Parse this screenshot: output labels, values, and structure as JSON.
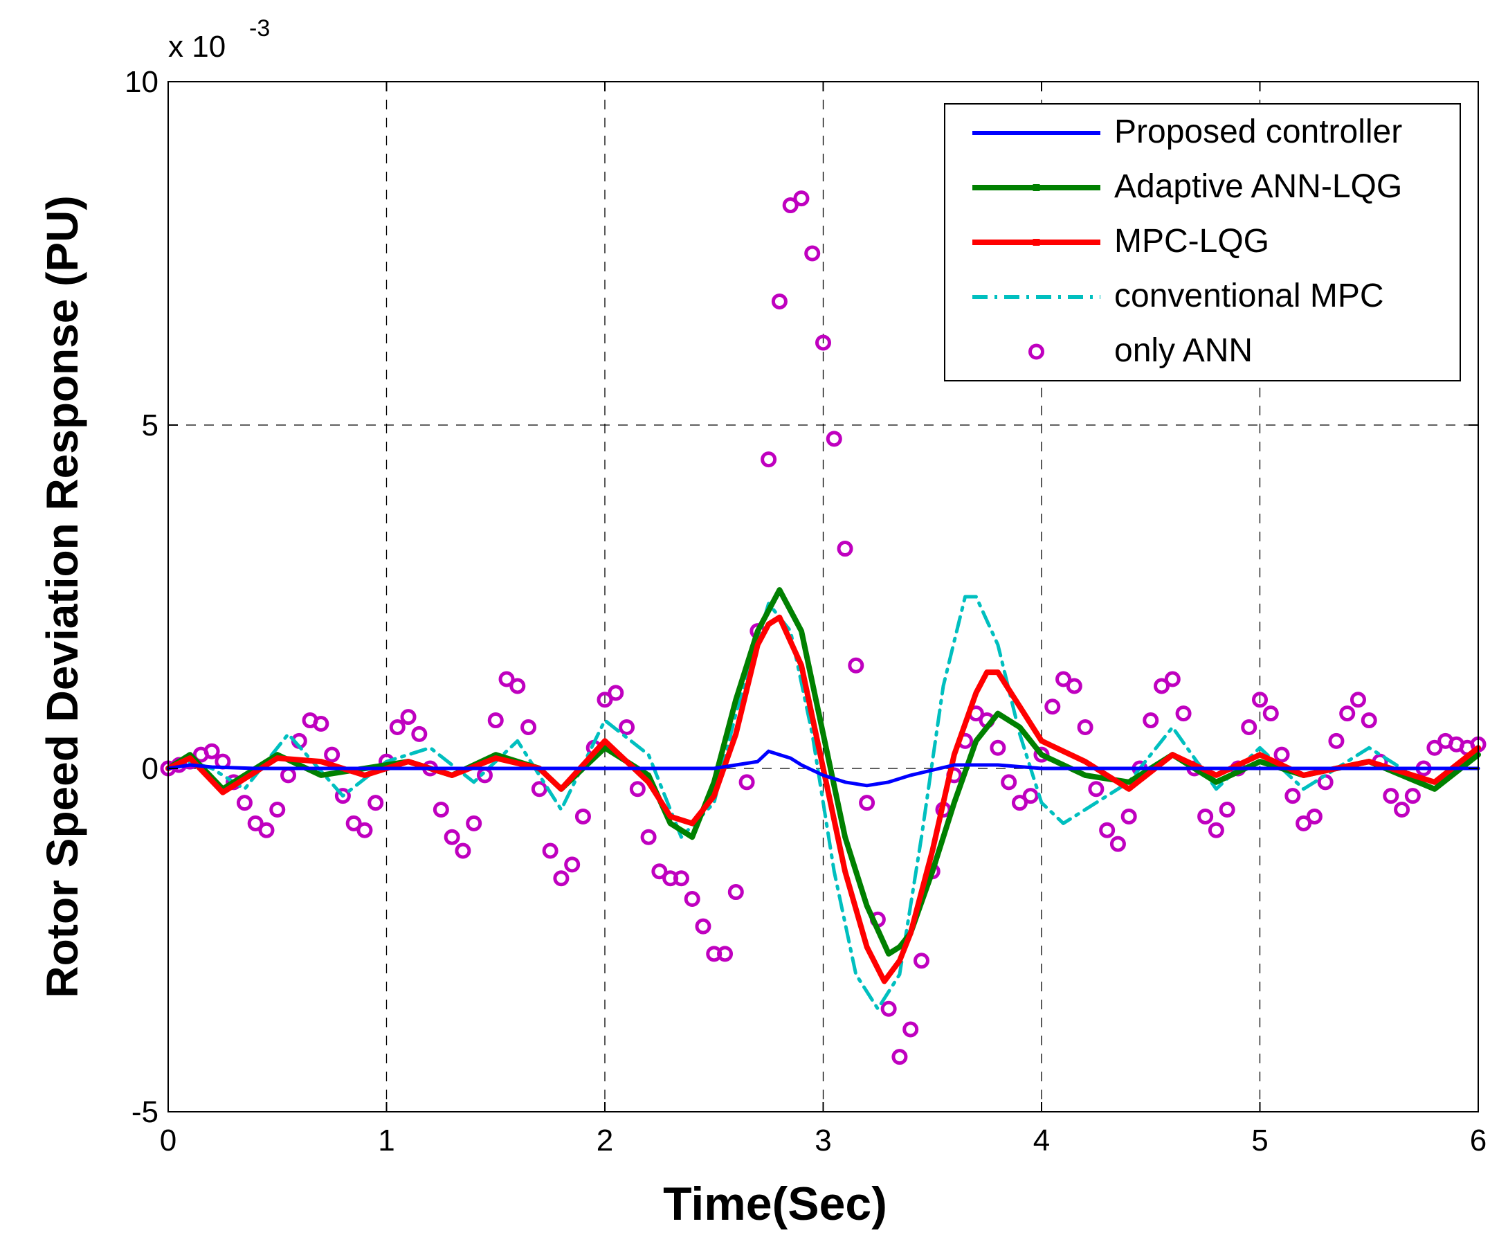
{
  "chart_data": {
    "type": "line",
    "title": "",
    "xlabel": "Time(Sec)",
    "ylabel": "Rotor Speed  Deviation Response  (PU)",
    "y_exponent_label": "x 10",
    "y_exponent_power": "-3",
    "xlim": [
      0,
      6
    ],
    "ylim": [
      -5,
      10
    ],
    "xticks": [
      0,
      1,
      2,
      3,
      4,
      5,
      6
    ],
    "xtick_labels": [
      "0",
      "1",
      "2",
      "3",
      "4",
      "5",
      "6"
    ],
    "yticks": [
      -5,
      0,
      5,
      10
    ],
    "ytick_labels": [
      "-5",
      "0",
      "5",
      "10"
    ],
    "grid": true,
    "legend_position": "top-right",
    "series": [
      {
        "name": "Proposed controller",
        "color": "#0000ff",
        "style": "solid",
        "x": [
          0,
          0.1,
          0.2,
          0.4,
          1.0,
          2.0,
          2.5,
          2.7,
          2.75,
          2.8,
          2.85,
          2.9,
          3.0,
          3.1,
          3.2,
          3.3,
          3.4,
          3.6,
          3.8,
          4.0,
          4.5,
          5.0,
          6.0
        ],
        "values": [
          0,
          0.05,
          0.02,
          0,
          0,
          0,
          0,
          0.1,
          0.25,
          0.2,
          0.15,
          0.05,
          -0.1,
          -0.2,
          -0.25,
          -0.2,
          -0.1,
          0.05,
          0.05,
          0,
          0,
          0,
          0
        ]
      },
      {
        "name": "Adaptive ANN-LQG",
        "color": "#008000",
        "style": "solid-markers",
        "x": [
          0,
          0.1,
          0.25,
          0.5,
          0.7,
          0.9,
          1.1,
          1.3,
          1.5,
          1.7,
          1.8,
          2.0,
          2.2,
          2.3,
          2.4,
          2.5,
          2.6,
          2.7,
          2.8,
          2.9,
          3.0,
          3.1,
          3.2,
          3.3,
          3.35,
          3.4,
          3.5,
          3.6,
          3.7,
          3.8,
          3.9,
          4.0,
          4.2,
          4.4,
          4.6,
          4.8,
          5.0,
          5.2,
          5.5,
          5.8,
          6.0
        ],
        "values": [
          0,
          0.2,
          -0.3,
          0.2,
          -0.1,
          0,
          0.1,
          -0.1,
          0.2,
          0,
          -0.3,
          0.3,
          -0.1,
          -0.8,
          -1.0,
          -0.2,
          1.0,
          2.0,
          2.6,
          2.0,
          0.5,
          -1.0,
          -2.0,
          -2.7,
          -2.6,
          -2.4,
          -1.5,
          -0.5,
          0.4,
          0.8,
          0.6,
          0.2,
          -0.1,
          -0.2,
          0.2,
          -0.2,
          0.1,
          -0.1,
          0.1,
          -0.3,
          0.2
        ]
      },
      {
        "name": " MPC-LQG",
        "color": "#ff0000",
        "style": "solid-markers",
        "x": [
          0,
          0.1,
          0.25,
          0.5,
          0.7,
          0.9,
          1.1,
          1.3,
          1.5,
          1.7,
          1.8,
          2.0,
          2.2,
          2.3,
          2.4,
          2.5,
          2.6,
          2.7,
          2.75,
          2.8,
          2.9,
          3.0,
          3.1,
          3.2,
          3.28,
          3.35,
          3.4,
          3.5,
          3.6,
          3.7,
          3.75,
          3.8,
          3.9,
          4.0,
          4.2,
          4.4,
          4.6,
          4.8,
          5.0,
          5.2,
          5.5,
          5.8,
          6.0
        ],
        "values": [
          0,
          0.15,
          -0.35,
          0.15,
          0.1,
          -0.1,
          0.1,
          -0.1,
          0.15,
          0,
          -0.3,
          0.4,
          -0.2,
          -0.7,
          -0.8,
          -0.4,
          0.5,
          1.8,
          2.1,
          2.2,
          1.5,
          0,
          -1.5,
          -2.6,
          -3.1,
          -2.8,
          -2.4,
          -1.2,
          0.2,
          1.1,
          1.4,
          1.4,
          0.9,
          0.4,
          0.1,
          -0.3,
          0.2,
          -0.1,
          0.2,
          -0.1,
          0.1,
          -0.2,
          0.3
        ]
      },
      {
        "name": "conventional MPC",
        "color": "#00bfbf",
        "style": "dash-dot",
        "x": [
          0,
          0.1,
          0.2,
          0.35,
          0.55,
          0.8,
          1.0,
          1.2,
          1.4,
          1.6,
          1.8,
          2.0,
          2.2,
          2.35,
          2.5,
          2.6,
          2.75,
          2.85,
          2.95,
          3.05,
          3.15,
          3.25,
          3.35,
          3.45,
          3.55,
          3.65,
          3.7,
          3.8,
          3.9,
          4.0,
          4.1,
          4.2,
          4.4,
          4.6,
          4.8,
          5.0,
          5.2,
          5.5,
          5.8,
          6.0
        ],
        "values": [
          0,
          0.1,
          0,
          -0.3,
          0.5,
          -0.4,
          0.1,
          0.3,
          -0.2,
          0.4,
          -0.6,
          0.7,
          0.2,
          -1.0,
          -0.5,
          0.8,
          2.4,
          2.0,
          0.5,
          -1.5,
          -3.0,
          -3.5,
          -3.0,
          -1.0,
          1.2,
          2.5,
          2.5,
          1.8,
          0.5,
          -0.5,
          -0.8,
          -0.6,
          -0.2,
          0.6,
          -0.3,
          0.3,
          -0.3,
          0.3,
          -0.3,
          0.3
        ]
      },
      {
        "name": "only ANN",
        "color": "#bf00bf",
        "style": "circles",
        "x": [
          0,
          0.05,
          0.1,
          0.15,
          0.2,
          0.25,
          0.3,
          0.35,
          0.4,
          0.45,
          0.5,
          0.55,
          0.6,
          0.65,
          0.7,
          0.75,
          0.8,
          0.85,
          0.9,
          0.95,
          1.0,
          1.05,
          1.1,
          1.15,
          1.2,
          1.25,
          1.3,
          1.35,
          1.4,
          1.45,
          1.5,
          1.55,
          1.6,
          1.65,
          1.7,
          1.75,
          1.8,
          1.85,
          1.9,
          1.95,
          2.0,
          2.05,
          2.1,
          2.15,
          2.2,
          2.25,
          2.3,
          2.35,
          2.4,
          2.45,
          2.5,
          2.55,
          2.6,
          2.65,
          2.7,
          2.75,
          2.8,
          2.85,
          2.9,
          2.95,
          3.0,
          3.05,
          3.1,
          3.15,
          3.2,
          3.25,
          3.3,
          3.35,
          3.4,
          3.45,
          3.5,
          3.55,
          3.6,
          3.65,
          3.7,
          3.75,
          3.8,
          3.85,
          3.9,
          3.95,
          4.0,
          4.05,
          4.1,
          4.15,
          4.2,
          4.25,
          4.3,
          4.35,
          4.4,
          4.45,
          4.5,
          4.55,
          4.6,
          4.65,
          4.7,
          4.75,
          4.8,
          4.85,
          4.9,
          4.95,
          5.0,
          5.05,
          5.1,
          5.15,
          5.2,
          5.25,
          5.3,
          5.35,
          5.4,
          5.45,
          5.5,
          5.55,
          5.6,
          5.65,
          5.7,
          5.75,
          5.8,
          5.85,
          5.9,
          5.95,
          6.0
        ],
        "values": [
          0,
          0.05,
          0.1,
          0.2,
          0.25,
          0.1,
          -0.2,
          -0.5,
          -0.8,
          -0.9,
          -0.6,
          -0.1,
          0.4,
          0.7,
          0.65,
          0.2,
          -0.4,
          -0.8,
          -0.9,
          -0.5,
          0.1,
          0.6,
          0.75,
          0.5,
          0,
          -0.6,
          -1.0,
          -1.2,
          -0.8,
          -0.1,
          0.7,
          1.3,
          1.2,
          0.6,
          -0.3,
          -1.2,
          -1.6,
          -1.4,
          -0.7,
          0.3,
          1.0,
          1.1,
          0.6,
          -0.3,
          -1.0,
          -1.5,
          -1.6,
          -1.6,
          -1.9,
          -2.3,
          -2.7,
          -2.7,
          -1.8,
          -0.2,
          2.0,
          4.5,
          6.8,
          8.2,
          8.3,
          7.5,
          6.2,
          4.8,
          3.2,
          1.5,
          -0.5,
          -2.2,
          -3.5,
          -4.2,
          -3.8,
          -2.8,
          -1.5,
          -0.6,
          -0.1,
          0.4,
          0.8,
          0.7,
          0.3,
          -0.2,
          -0.5,
          -0.4,
          0.2,
          0.9,
          1.3,
          1.2,
          0.6,
          -0.3,
          -0.9,
          -1.1,
          -0.7,
          0,
          0.7,
          1.2,
          1.3,
          0.8,
          0,
          -0.7,
          -0.9,
          -0.6,
          0,
          0.6,
          1.0,
          0.8,
          0.2,
          -0.4,
          -0.8,
          -0.7,
          -0.2,
          0.4,
          0.8,
          1.0,
          0.7,
          0.1,
          -0.4,
          -0.6,
          -0.4,
          0,
          0.3,
          0.4,
          0.35,
          0.3,
          0.35
        ]
      }
    ]
  }
}
